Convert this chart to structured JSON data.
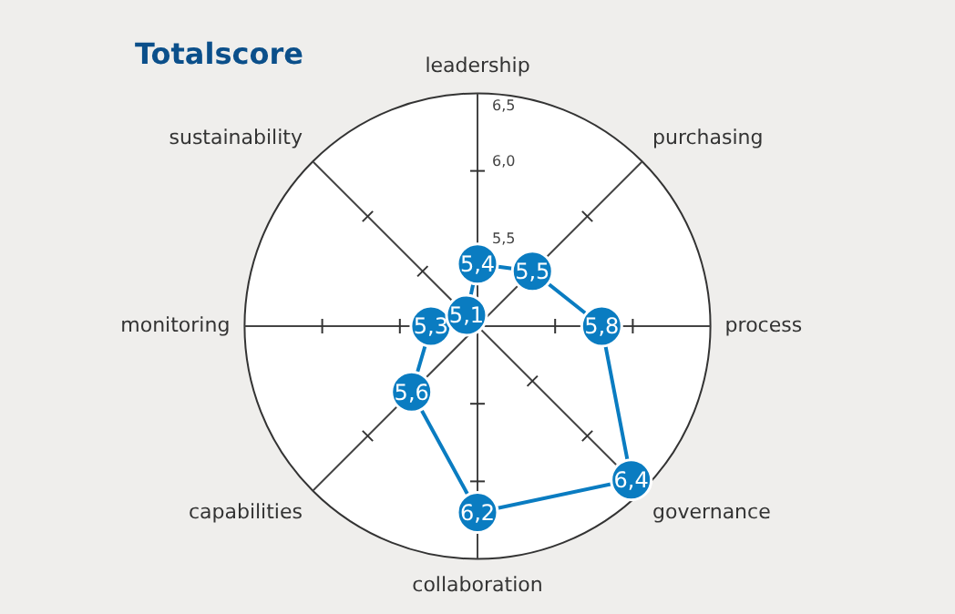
{
  "chart_data": {
    "type": "radar",
    "title": "Totalscore",
    "categories": [
      "leadership",
      "purchasing",
      "process",
      "governance",
      "collaboration",
      "capabilities",
      "monitoring",
      "sustainability"
    ],
    "series": [
      {
        "color": "#0a7cc1",
        "values": [
          5.4,
          5.5,
          5.8,
          6.4,
          6.2,
          5.6,
          5.3,
          5.1
        ],
        "value_labels": [
          "5,4",
          "5,5",
          "5,8",
          "6,4",
          "6,2",
          "5,6",
          "5,3",
          "5,1"
        ]
      }
    ],
    "ylim": [
      5,
      6.5
    ],
    "yticks": [
      {
        "value": 5.5,
        "label": "5,5"
      },
      {
        "value": 6.0,
        "label": "6,0"
      },
      {
        "value": 6.5,
        "label": "6,5"
      }
    ],
    "grid": true,
    "marker": "circle",
    "legend": false
  }
}
